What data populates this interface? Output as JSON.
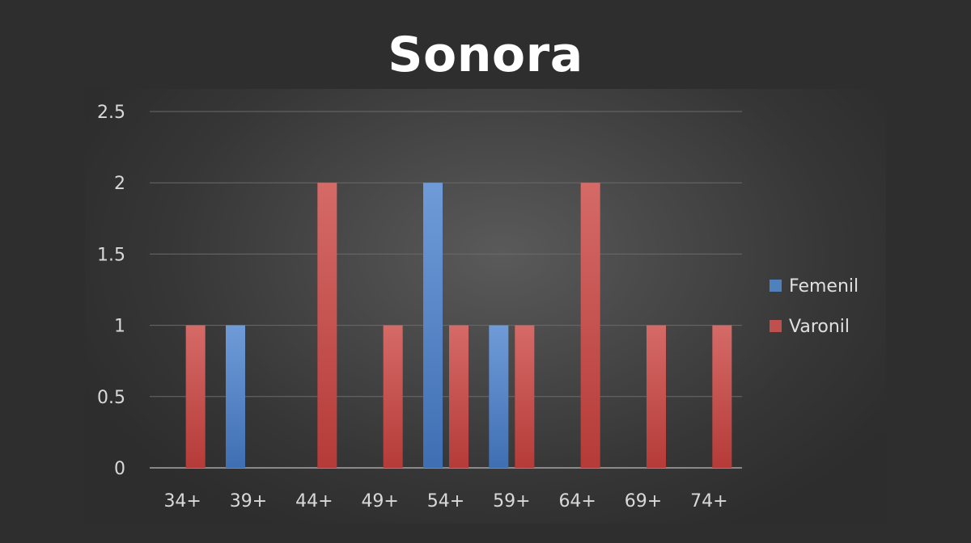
{
  "page": {
    "title": "Sonora"
  },
  "chart_data": {
    "type": "bar",
    "title": "Sonora",
    "xlabel": "",
    "ylabel": "",
    "categories": [
      "34+",
      "39+",
      "44+",
      "49+",
      "54+",
      "59+",
      "64+",
      "69+",
      "74+"
    ],
    "series": [
      {
        "name": "Femenil",
        "color": "#4f81bd",
        "values": [
          0,
          1,
          0,
          0,
          2,
          1,
          0,
          0,
          0
        ]
      },
      {
        "name": "Varonil",
        "color": "#c0504d",
        "values": [
          1,
          0,
          2,
          1,
          1,
          1,
          2,
          1,
          1
        ]
      }
    ],
    "ylim": [
      0,
      2.5
    ],
    "yticks": [
      "0",
      "0.5",
      "1",
      "1.5",
      "2",
      "2.5"
    ],
    "grid": true,
    "legend_position": "right"
  }
}
